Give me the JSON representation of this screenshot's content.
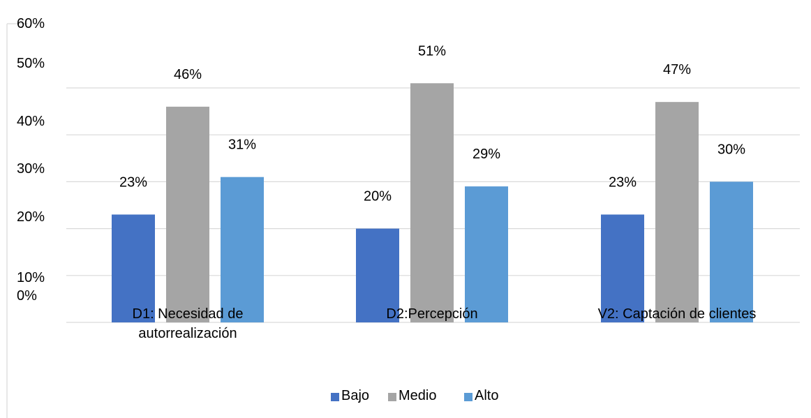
{
  "chart_data": {
    "type": "bar",
    "categories": [
      "D1: Necesidad de autorrealización",
      "D2:Percepción",
      "V2: Captación de clientes"
    ],
    "series": [
      {
        "name": "Bajo",
        "values": [
          23,
          20,
          23
        ],
        "labels": [
          "23%",
          "20%",
          "23%"
        ],
        "color": "#4472c4"
      },
      {
        "name": "Medio",
        "values": [
          46,
          51,
          47
        ],
        "labels": [
          "46%",
          "51%",
          "47%"
        ],
        "color": "#a5a5a5"
      },
      {
        "name": "Alto",
        "values": [
          31,
          29,
          30
        ],
        "labels": [
          "31%",
          "29%",
          "30%"
        ],
        "color": "#5b9bd5"
      }
    ],
    "y_ticks": [
      "60%",
      "50%",
      "40%",
      "30%",
      "20%",
      "10%",
      "0%"
    ],
    "ylim": [
      0,
      60
    ],
    "grid": true,
    "legend_position": "bottom"
  }
}
